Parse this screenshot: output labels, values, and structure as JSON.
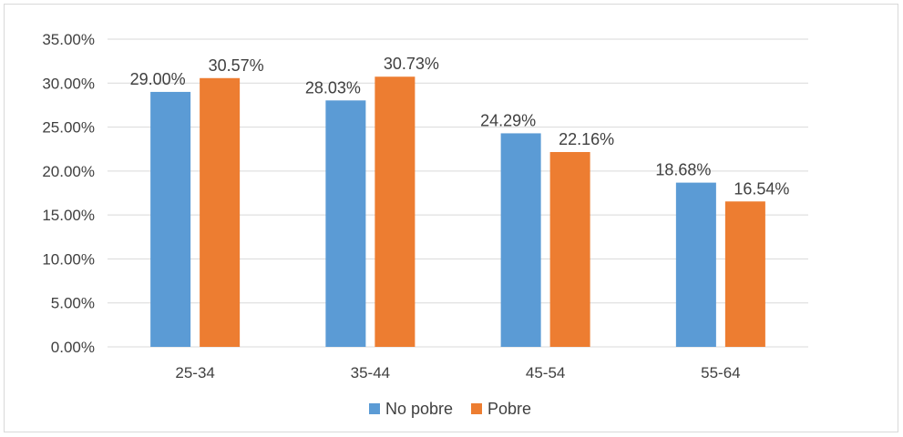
{
  "chart_data": {
    "type": "bar",
    "title": "",
    "xlabel": "",
    "ylabel": "",
    "categories": [
      "25-34",
      "35-44",
      "45-54",
      "55-64"
    ],
    "series": [
      {
        "name": "No pobre",
        "color": "#5b9bd5",
        "values": [
          29.0,
          28.03,
          24.29,
          18.68
        ]
      },
      {
        "name": "Pobre",
        "color": "#ed7d31",
        "values": [
          30.57,
          30.73,
          22.16,
          16.54
        ]
      }
    ],
    "value_format": "percent_2dp",
    "ylim": [
      0,
      35
    ],
    "y_ticks": [
      0,
      5,
      10,
      15,
      20,
      25,
      30,
      35
    ],
    "y_tick_labels": [
      "0.00%",
      "5.00%",
      "10.00%",
      "15.00%",
      "20.00%",
      "25.00%",
      "30.00%",
      "35.00%"
    ],
    "data_labels": [
      [
        "29.00%",
        "28.03%",
        "24.29%",
        "18.68%"
      ],
      [
        "30.57%",
        "30.73%",
        "22.16%",
        "16.54%"
      ]
    ],
    "grid": true,
    "gridline_color": "#d9d9d9",
    "legend_position": "bottom"
  }
}
